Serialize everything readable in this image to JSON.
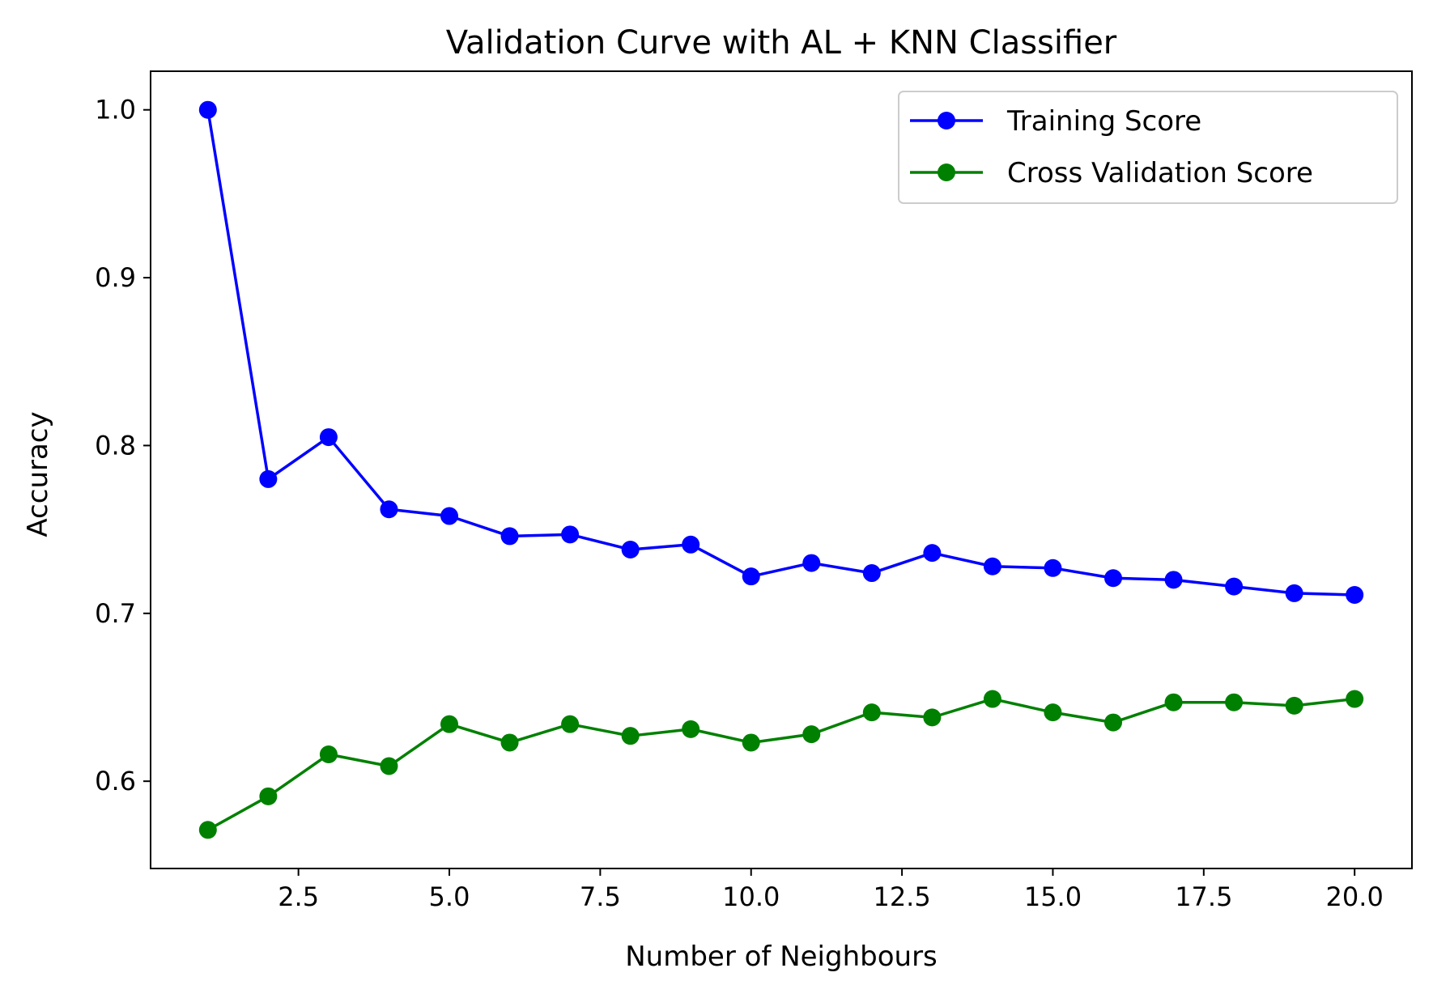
{
  "chart_data": {
    "type": "line",
    "title": "Validation Curve with AL + KNN Classifier",
    "xlabel": "Number of Neighbours",
    "ylabel": "Accuracy",
    "xlim": [
      0.05,
      20.95
    ],
    "ylim": [
      0.548,
      1.023
    ],
    "xticks": [
      2.5,
      5.0,
      7.5,
      10.0,
      12.5,
      15.0,
      17.5,
      20.0
    ],
    "xtick_labels": [
      "2.5",
      "5.0",
      "7.5",
      "10.0",
      "12.5",
      "15.0",
      "17.5",
      "20.0"
    ],
    "yticks": [
      0.6,
      0.7,
      0.8,
      0.9,
      1.0
    ],
    "ytick_labels": [
      "0.6",
      "0.7",
      "0.8",
      "0.9",
      "1.0"
    ],
    "grid": false,
    "legend_position": "top-right",
    "x": [
      1,
      2,
      3,
      4,
      5,
      6,
      7,
      8,
      9,
      10,
      11,
      12,
      13,
      14,
      15,
      16,
      17,
      18,
      19,
      20
    ],
    "series": [
      {
        "name": "Training Score",
        "color": "#0000ff",
        "marker": "circle",
        "values": [
          1.0,
          0.78,
          0.805,
          0.762,
          0.758,
          0.746,
          0.747,
          0.738,
          0.741,
          0.722,
          0.73,
          0.724,
          0.736,
          0.728,
          0.727,
          0.721,
          0.72,
          0.716,
          0.712,
          0.711
        ]
      },
      {
        "name": "Cross Validation Score",
        "color": "#008000",
        "marker": "circle",
        "values": [
          0.571,
          0.591,
          0.616,
          0.609,
          0.634,
          0.623,
          0.634,
          0.627,
          0.631,
          0.623,
          0.628,
          0.641,
          0.638,
          0.649,
          0.641,
          0.635,
          0.647,
          0.647,
          0.645,
          0.649
        ]
      }
    ]
  }
}
